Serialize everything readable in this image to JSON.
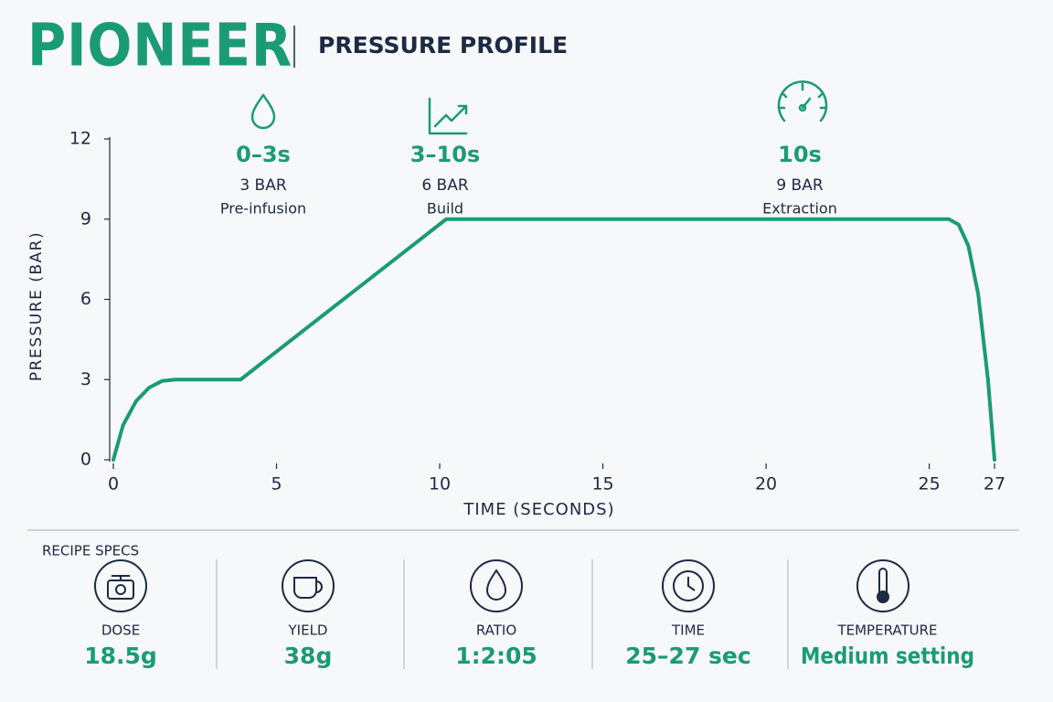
{
  "header": {
    "brand": "PIONEER",
    "title": "PRESSURE PROFILE"
  },
  "chart_data": {
    "type": "line",
    "x_label": "TIME (SECONDS)",
    "y_label": "PRESSURE (BAR)",
    "x": [
      0,
      0.3,
      0.7,
      1.1,
      1.5,
      1.9,
      3.9,
      10.2,
      25.6,
      25.9,
      26.2,
      26.5,
      26.8,
      27
    ],
    "series": [
      {
        "name": "Pressure",
        "color": "#1a9b76",
        "values": [
          0,
          1.3,
          2.2,
          2.7,
          2.95,
          3,
          3,
          9,
          9,
          8.8,
          8,
          6.2,
          3,
          0
        ]
      }
    ],
    "xlim": [
      0,
      27
    ],
    "xticks": [
      0,
      5,
      10,
      15,
      20,
      25,
      27
    ],
    "ylim": [
      0,
      12
    ],
    "yticks": [
      0,
      3,
      6,
      9,
      12
    ],
    "annotations": [
      {
        "time": "0–3s",
        "pressure": "3 BAR",
        "label": "Pre-infusion"
      },
      {
        "time": "3–10s",
        "pressure": "6 BAR",
        "label": "Build"
      },
      {
        "time": "10s",
        "pressure": "9 BAR",
        "label": "Extraction"
      }
    ]
  },
  "specs": {
    "title": "RECIPE SPECS",
    "items": [
      {
        "label": "DOSE",
        "value": "18.5g"
      },
      {
        "label": "YIELD",
        "value": "38g"
      },
      {
        "label": "RATIO",
        "value": "1:2:05"
      },
      {
        "label": "TIME",
        "value": "25–27 sec"
      },
      {
        "label": "TEMPERATURE",
        "value": "Medium setting"
      }
    ]
  }
}
